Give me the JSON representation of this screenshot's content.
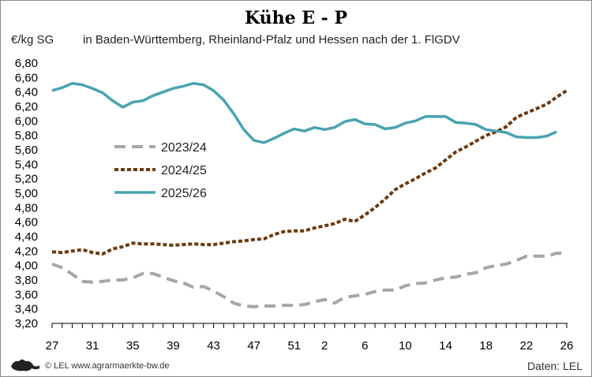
{
  "chart_data": {
    "type": "line",
    "title": "Kühe E - P",
    "subtitle": "in Baden-Württemberg, Rheinland-Pfalz und Hessen nach der 1. FlGDV",
    "ylabel": "€/kg SG",
    "xlabel": "",
    "ylim": [
      3.2,
      6.8
    ],
    "yticks": [
      "3,20",
      "3,40",
      "3,60",
      "3,80",
      "4,00",
      "4,20",
      "4,40",
      "4,60",
      "4,80",
      "5,00",
      "5,20",
      "5,40",
      "5,60",
      "5,80",
      "6,00",
      "6,20",
      "6,40",
      "6,60",
      "6,80"
    ],
    "x": [
      27,
      28,
      29,
      30,
      31,
      32,
      33,
      34,
      35,
      36,
      37,
      38,
      39,
      40,
      41,
      42,
      43,
      44,
      45,
      46,
      47,
      48,
      49,
      50,
      51,
      52,
      1,
      2,
      3,
      4,
      5,
      6,
      7,
      8,
      9,
      10,
      11,
      12,
      13,
      14,
      15,
      16,
      17,
      18,
      19,
      20,
      21,
      22,
      23,
      24,
      25,
      26
    ],
    "xtick_labels": [
      "27",
      "31",
      "35",
      "39",
      "43",
      "47",
      "51",
      "2",
      "6",
      "10",
      "14",
      "18",
      "22",
      "26"
    ],
    "xtick_positions": [
      0,
      4,
      8,
      12,
      16,
      20,
      24,
      27,
      31,
      35,
      39,
      43,
      47,
      51
    ],
    "grid": false,
    "legend_position": "left-middle",
    "series": [
      {
        "name": "2023/24",
        "style": "dashed",
        "color": "#a6a6a6",
        "values": [
          4.02,
          3.97,
          3.88,
          3.78,
          3.77,
          3.78,
          3.8,
          3.8,
          3.83,
          3.89,
          3.89,
          3.84,
          3.79,
          3.76,
          3.7,
          3.71,
          3.65,
          3.57,
          3.48,
          3.44,
          3.43,
          3.44,
          3.44,
          3.45,
          3.45,
          3.46,
          3.5,
          3.53,
          3.48,
          3.56,
          3.58,
          3.6,
          3.64,
          3.66,
          3.66,
          3.72,
          3.75,
          3.76,
          3.8,
          3.83,
          3.84,
          3.88,
          3.9,
          3.97,
          4.0,
          4.02,
          4.07,
          4.13,
          4.13,
          4.13,
          4.17,
          4.17
        ]
      },
      {
        "name": "2024/25",
        "style": "dotted",
        "color": "#6b3a0f",
        "values": [
          4.19,
          4.18,
          4.2,
          4.22,
          4.18,
          4.16,
          4.23,
          4.26,
          4.31,
          4.3,
          4.3,
          4.29,
          4.28,
          4.29,
          4.3,
          4.29,
          4.29,
          4.31,
          4.33,
          4.34,
          4.36,
          4.37,
          4.43,
          4.47,
          4.48,
          4.48,
          4.52,
          4.55,
          4.58,
          4.64,
          4.61,
          4.7,
          4.8,
          4.92,
          5.05,
          5.13,
          5.2,
          5.28,
          5.35,
          5.46,
          5.57,
          5.64,
          5.72,
          5.8,
          5.85,
          5.92,
          6.05,
          6.11,
          6.17,
          6.23,
          6.33,
          6.42
        ]
      },
      {
        "name": "2025/26",
        "style": "solid",
        "color": "#4aa3b0",
        "values": [
          6.42,
          6.46,
          6.52,
          6.5,
          6.45,
          6.39,
          6.28,
          6.19,
          6.26,
          6.28,
          6.35,
          6.4,
          6.45,
          6.48,
          6.52,
          6.5,
          6.42,
          6.29,
          6.1,
          5.88,
          5.73,
          5.7,
          5.76,
          5.83,
          5.89,
          5.86,
          5.91,
          5.88,
          5.91,
          5.99,
          6.02,
          5.96,
          5.95,
          5.89,
          5.91,
          5.97,
          6.0,
          6.06,
          6.06,
          6.06,
          5.98,
          5.97,
          5.95,
          5.88,
          5.86,
          5.84,
          5.78,
          5.77,
          5.77,
          5.79,
          5.85,
          null
        ]
      }
    ]
  },
  "footer": {
    "credit": "© LEL www.agrarmaerkte-bw.de",
    "source": "Daten: LEL"
  },
  "colors": {
    "axis": "#000000",
    "frame": "#8a8a8a"
  },
  "logo_icon": "lion-logo-icon"
}
